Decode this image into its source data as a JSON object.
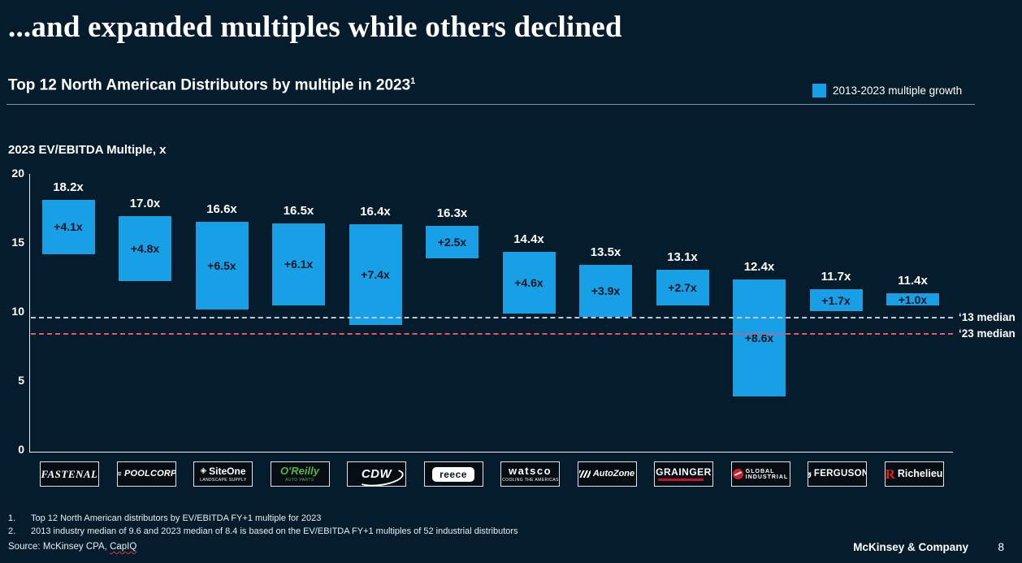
{
  "slide": {
    "title": "...and expanded multiples while others declined",
    "subtitle": "Top 12 North American Distributors by multiple in 2023",
    "subtitle_footnote_ref": "1",
    "legend": {
      "label": "2013-2023 multiple growth",
      "color": "#18A0E6"
    },
    "footnotes": [
      {
        "num": "1.",
        "text": "Top 12 North American distributors by EV/EBITDA FY+1 multiple for 2023"
      },
      {
        "num": "2.",
        "text": "2013 industry median of 9.6 and 2023 median of 8.4 is based on the EV/EBITDA FY+1 multiples of 52 industrial distributors"
      }
    ],
    "source_prefix": "Source: McKinsey CPA, ",
    "source_link": "CapIQ",
    "footer": {
      "brand": "McKinsey & Company",
      "page": "8"
    }
  },
  "chart_data": {
    "type": "bar",
    "variant": "floating-column",
    "title": "Top 12 North American Distributors by multiple in 2023",
    "ylabel": "2023 EV/EBITDA Multiple, x",
    "ylim": [
      0,
      20
    ],
    "yticks": [
      0,
      5,
      10,
      15,
      20
    ],
    "bar_color": "#18A0E6",
    "legend_position": "top-right",
    "bars": [
      {
        "company": "Fastenal",
        "multiple_2023": 18.2,
        "growth": 4.1
      },
      {
        "company": "PoolCorp",
        "multiple_2023": 17.0,
        "growth": 4.8
      },
      {
        "company": "SiteOne",
        "multiple_2023": 16.6,
        "growth": 6.5
      },
      {
        "company": "O'Reilly",
        "multiple_2023": 16.5,
        "growth": 6.1
      },
      {
        "company": "CDW",
        "multiple_2023": 16.4,
        "growth": 7.4
      },
      {
        "company": "Reece",
        "multiple_2023": 16.3,
        "growth": 2.5
      },
      {
        "company": "Watsco",
        "multiple_2023": 14.4,
        "growth": 4.6
      },
      {
        "company": "AutoZone",
        "multiple_2023": 13.5,
        "growth": 3.9
      },
      {
        "company": "Grainger",
        "multiple_2023": 13.1,
        "growth": 2.7
      },
      {
        "company": "Global Industrial",
        "multiple_2023": 12.4,
        "growth": 8.6
      },
      {
        "company": "Ferguson",
        "multiple_2023": 11.7,
        "growth": 1.7
      },
      {
        "company": "Richelieu",
        "multiple_2023": 11.4,
        "growth": 1.0
      }
    ],
    "medians": [
      {
        "label": "‘13 median",
        "value": 9.6,
        "color": "#BFC9D2"
      },
      {
        "label": "‘23 median",
        "value": 8.4,
        "color": "#E85565"
      }
    ],
    "logos": [
      {
        "text": "FASTENAL"
      },
      {
        "icon": "≋",
        "text": "POOLCORP"
      },
      {
        "icon": "◈",
        "text": "SiteOne",
        "sub": "LANDSCAPE SUPPLY"
      },
      {
        "text": "O'Reilly",
        "sub": "AUTO PARTS"
      },
      {
        "text": "CDW"
      },
      {
        "text": "reece"
      },
      {
        "text": "watsco",
        "sub": "COOLING THE AMERICAS"
      },
      {
        "text": "AutoZone"
      },
      {
        "text": "GRAINGER"
      },
      {
        "text": "GLOBAL",
        "sub": "INDUSTRIAL"
      },
      {
        "icon": "ø",
        "text": "FERGUSON"
      },
      {
        "icon": "R",
        "text": "Richelieu"
      }
    ]
  }
}
